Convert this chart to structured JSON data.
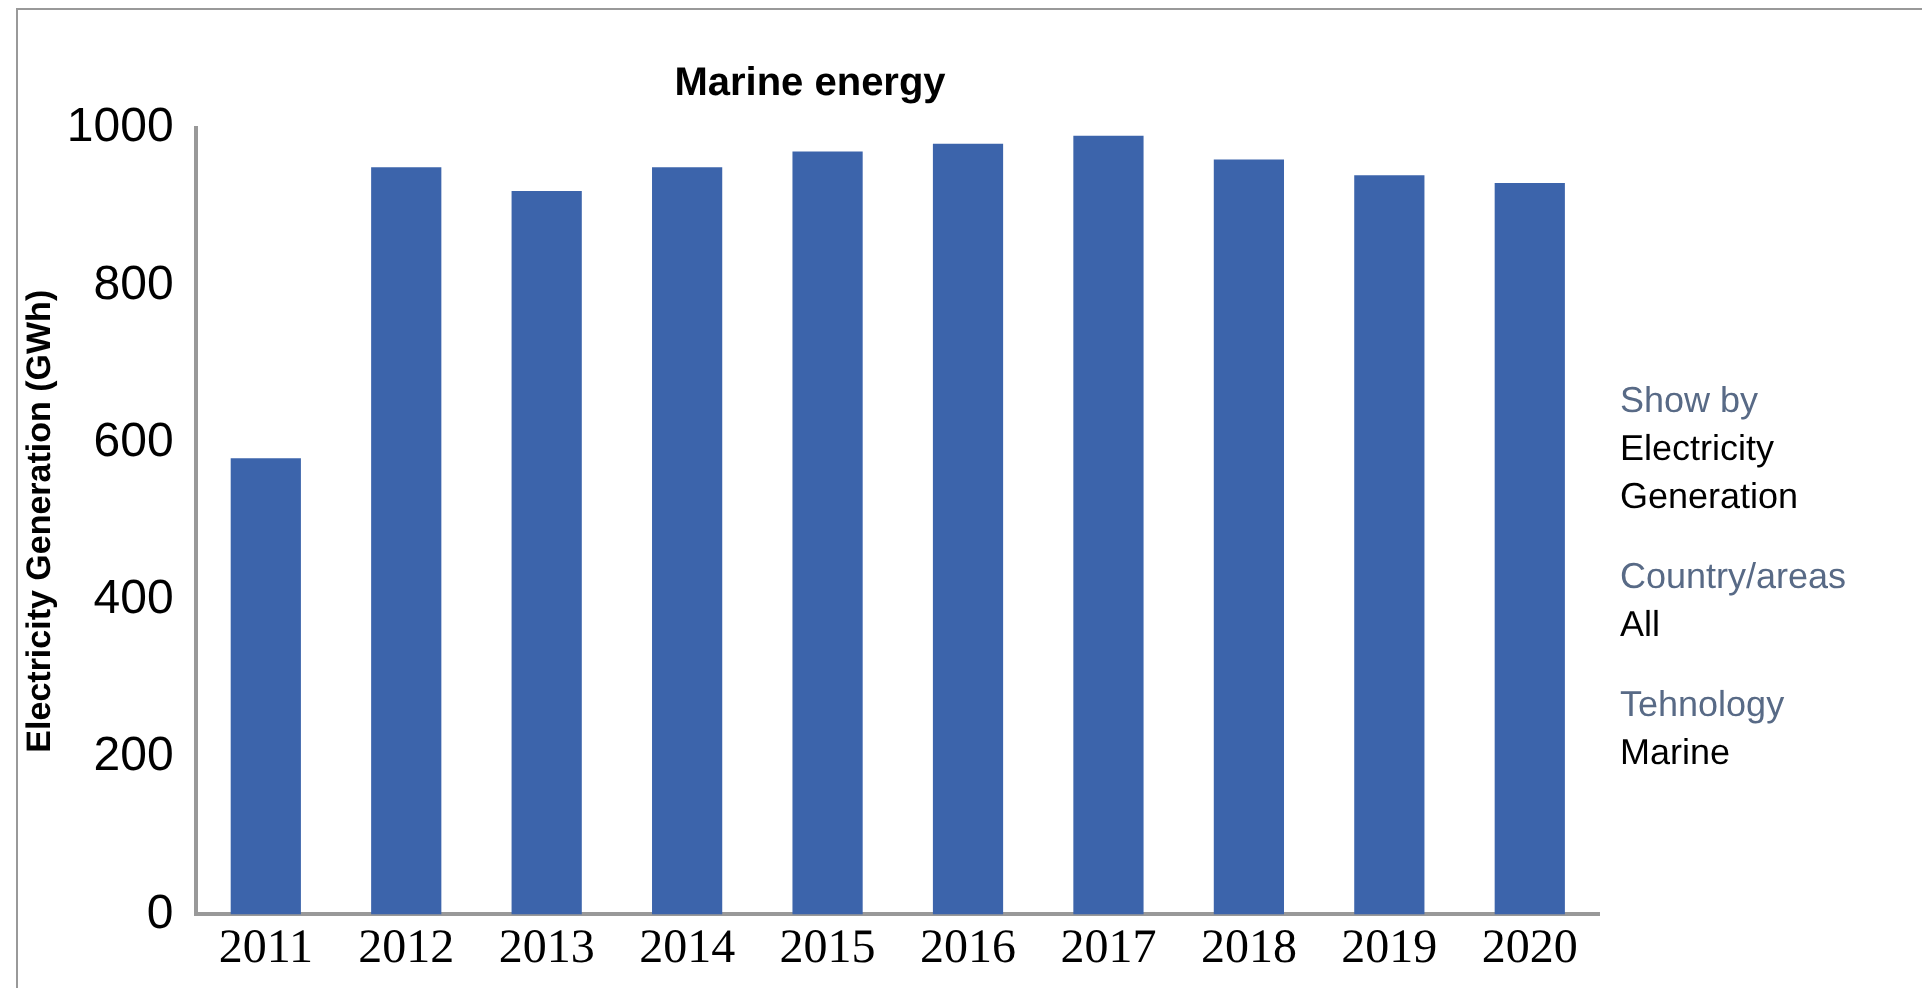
{
  "chart_data": {
    "type": "bar",
    "title": "Marine energy",
    "ylabel": "Electricity Generation (GWh)",
    "categories": [
      "2011",
      "2012",
      "2013",
      "2014",
      "2015",
      "2016",
      "2017",
      "2018",
      "2019",
      "2020"
    ],
    "values": [
      580,
      950,
      920,
      950,
      970,
      980,
      990,
      960,
      940,
      930
    ],
    "color": "#3c64ab",
    "ylim": [
      0,
      1000
    ],
    "yticks": [
      0,
      200,
      400,
      600,
      800,
      1000
    ],
    "grid": false,
    "legend": false,
    "annotations": [
      "Show by",
      "Electricity Generation",
      "Country/areas",
      "All",
      "Tehnology",
      "Marine"
    ]
  }
}
